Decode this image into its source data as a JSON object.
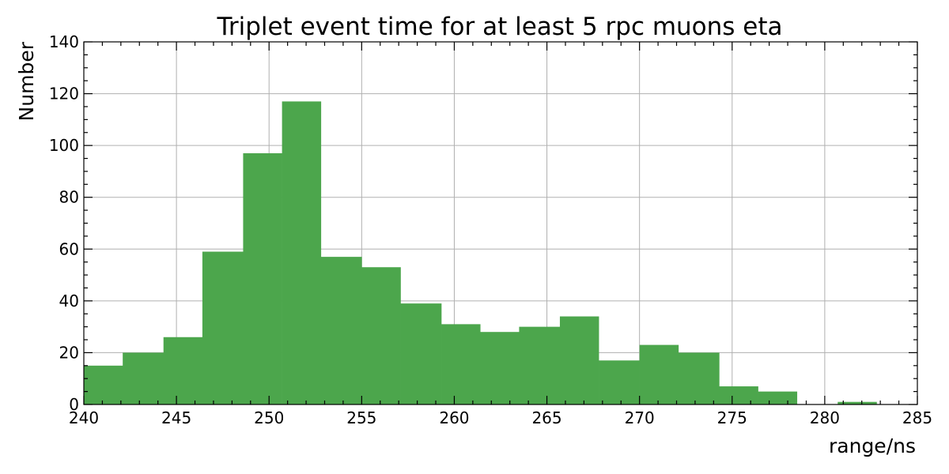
{
  "chart_data": {
    "type": "bar",
    "title": "Triplet event time for at least 5 rpc muons eta",
    "xlabel": "range/ns",
    "ylabel": "Number",
    "xlim": [
      240,
      285
    ],
    "ylim": [
      0,
      140
    ],
    "x_ticks": [
      240,
      245,
      250,
      255,
      260,
      265,
      270,
      275,
      280,
      285
    ],
    "y_ticks": [
      0,
      20,
      40,
      60,
      80,
      100,
      120,
      140
    ],
    "grid": true,
    "bar_color": "#4ca64c",
    "bins": [
      {
        "x0": 240.0,
        "x1": 242.1,
        "value": 15
      },
      {
        "x0": 242.1,
        "x1": 244.3,
        "value": 20
      },
      {
        "x0": 244.3,
        "x1": 246.4,
        "value": 26
      },
      {
        "x0": 246.4,
        "x1": 248.6,
        "value": 59
      },
      {
        "x0": 248.6,
        "x1": 250.7,
        "value": 97
      },
      {
        "x0": 250.7,
        "x1": 252.8,
        "value": 117
      },
      {
        "x0": 252.8,
        "x1": 255.0,
        "value": 57
      },
      {
        "x0": 255.0,
        "x1": 257.1,
        "value": 53
      },
      {
        "x0": 257.1,
        "x1": 259.3,
        "value": 39
      },
      {
        "x0": 259.3,
        "x1": 261.4,
        "value": 31
      },
      {
        "x0": 261.4,
        "x1": 263.5,
        "value": 28
      },
      {
        "x0": 263.5,
        "x1": 265.7,
        "value": 30
      },
      {
        "x0": 265.7,
        "x1": 267.8,
        "value": 34
      },
      {
        "x0": 267.8,
        "x1": 270.0,
        "value": 17
      },
      {
        "x0": 270.0,
        "x1": 272.1,
        "value": 23
      },
      {
        "x0": 272.1,
        "x1": 274.3,
        "value": 20
      },
      {
        "x0": 274.3,
        "x1": 276.4,
        "value": 7
      },
      {
        "x0": 276.4,
        "x1": 278.5,
        "value": 5
      },
      {
        "x0": 278.5,
        "x1": 280.7,
        "value": 0
      },
      {
        "x0": 280.7,
        "x1": 282.8,
        "value": 1
      }
    ]
  }
}
